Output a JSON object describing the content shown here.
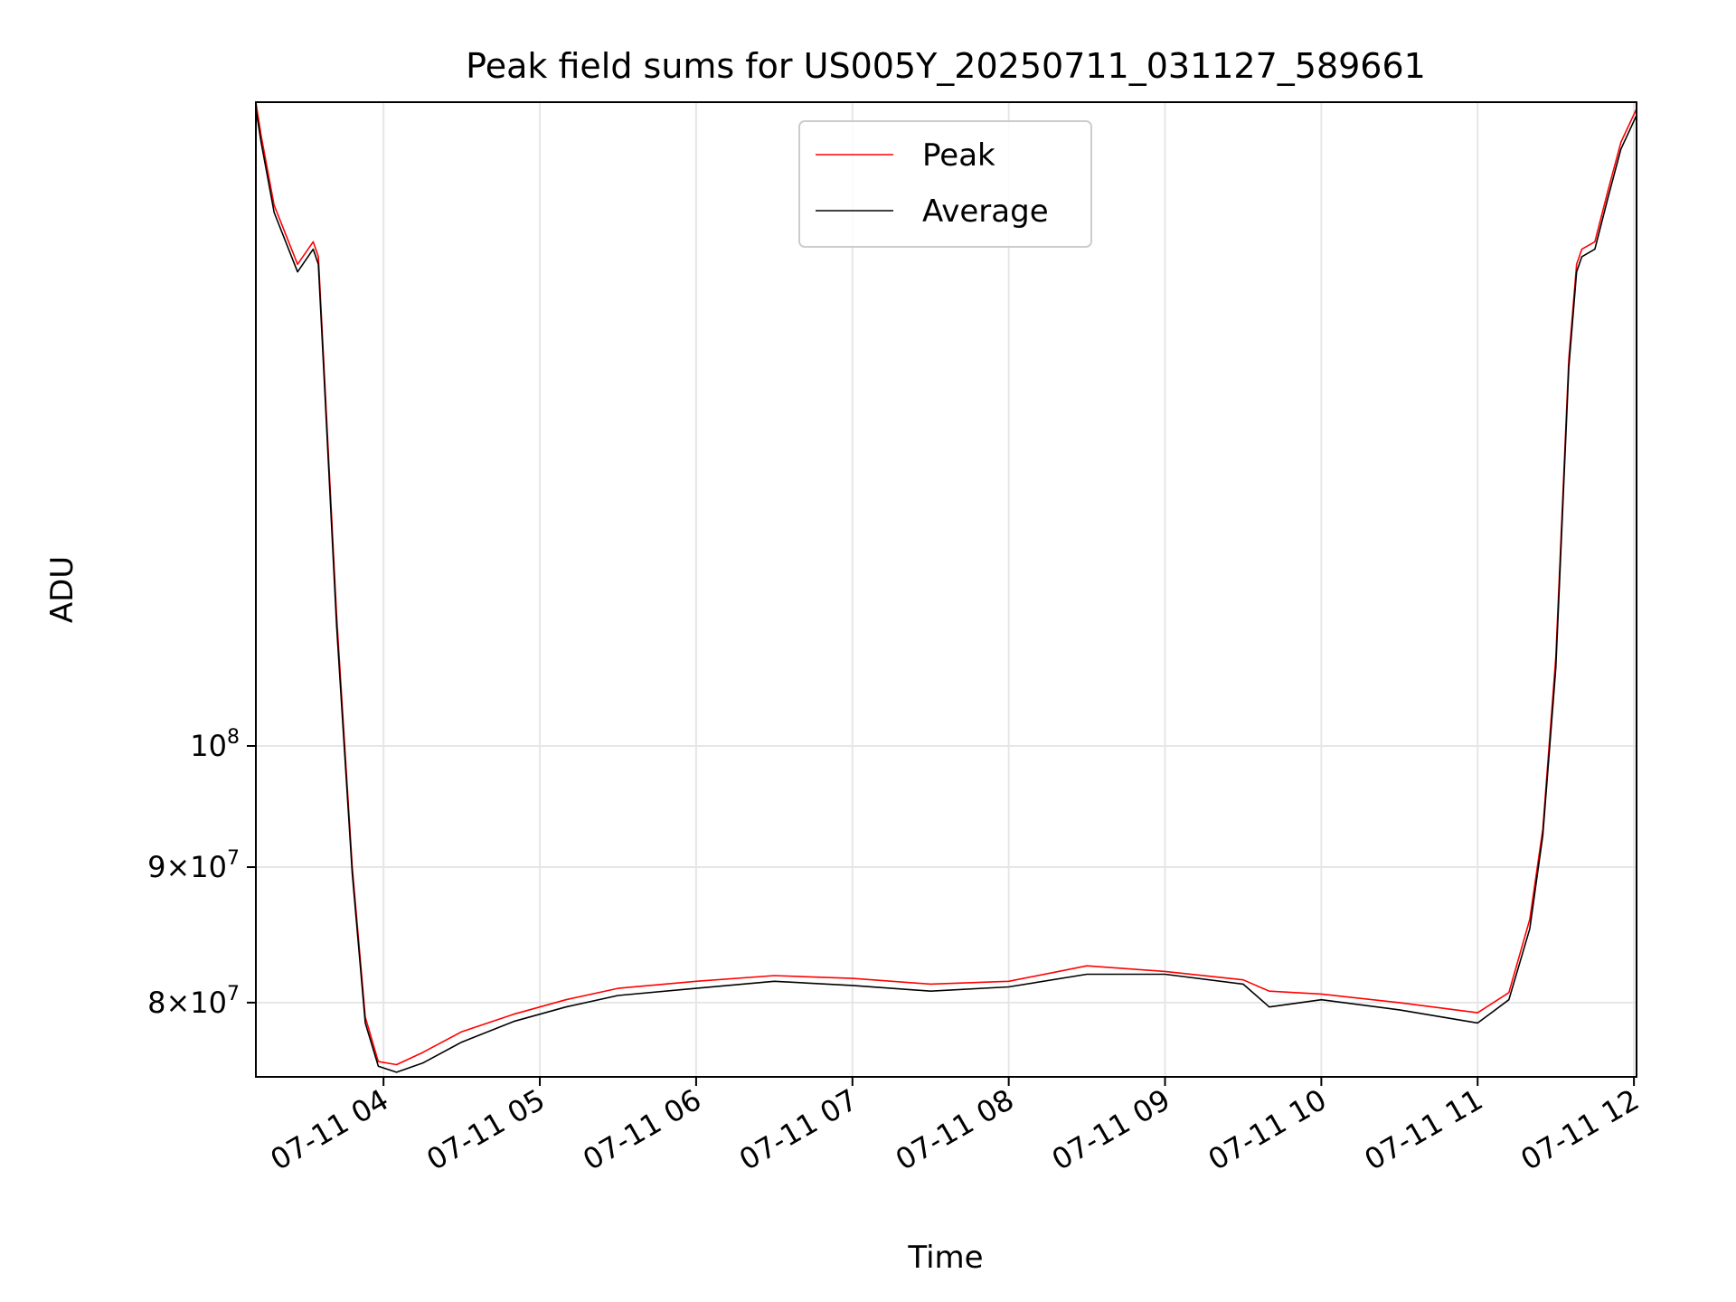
{
  "chart_data": {
    "type": "line",
    "title": "Peak field sums for US005Y_20250711_031127_589661",
    "xlabel": "Time",
    "ylabel": "ADU",
    "x_scale": "time",
    "y_scale": "log",
    "xlim": [
      "2025-07-11 03:11",
      "2025-07-11 12:01"
    ],
    "ylim": [
      75000000,
      175000000
    ],
    "x_ticks": [
      {
        "value": "2025-07-11 04:00",
        "label": "07-11 04"
      },
      {
        "value": "2025-07-11 05:00",
        "label": "07-11 05"
      },
      {
        "value": "2025-07-11 06:00",
        "label": "07-11 06"
      },
      {
        "value": "2025-07-11 07:00",
        "label": "07-11 07"
      },
      {
        "value": "2025-07-11 08:00",
        "label": "07-11 08"
      },
      {
        "value": "2025-07-11 09:00",
        "label": "07-11 09"
      },
      {
        "value": "2025-07-11 10:00",
        "label": "07-11 10"
      },
      {
        "value": "2025-07-11 11:00",
        "label": "07-11 11"
      },
      {
        "value": "2025-07-11 12:00",
        "label": "07-11 12"
      }
    ],
    "y_ticks": [
      {
        "value": 80000000,
        "label": "8×10⁷",
        "mantissa": "8",
        "exponent": "7"
      },
      {
        "value": 90000000,
        "label": "9×10⁷",
        "mantissa": "9",
        "exponent": "7"
      },
      {
        "value": 100000000,
        "label": "10⁸",
        "mantissa": "",
        "exponent": "8"
      }
    ],
    "grid": true,
    "legend": {
      "position": "upper center"
    },
    "series": [
      {
        "name": "Peak",
        "color": "#ff0000",
        "x": [
          "2025-07-11 03:11",
          "2025-07-11 03:13",
          "2025-07-11 03:18",
          "2025-07-11 03:27",
          "2025-07-11 03:33",
          "2025-07-11 03:35",
          "2025-07-11 03:37",
          "2025-07-11 03:42",
          "2025-07-11 03:48",
          "2025-07-11 03:53",
          "2025-07-11 03:58",
          "2025-07-11 04:05",
          "2025-07-11 04:15",
          "2025-07-11 04:30",
          "2025-07-11 04:50",
          "2025-07-11 05:10",
          "2025-07-11 05:30",
          "2025-07-11 06:00",
          "2025-07-11 06:30",
          "2025-07-11 07:00",
          "2025-07-11 07:30",
          "2025-07-11 08:00",
          "2025-07-11 08:30",
          "2025-07-11 09:00",
          "2025-07-11 09:30",
          "2025-07-11 09:40",
          "2025-07-11 10:00",
          "2025-07-11 10:30",
          "2025-07-11 11:00",
          "2025-07-11 11:12",
          "2025-07-11 11:20",
          "2025-07-11 11:25",
          "2025-07-11 11:30",
          "2025-07-11 11:35",
          "2025-07-11 11:38",
          "2025-07-11 11:40",
          "2025-07-11 11:45",
          "2025-07-11 11:50",
          "2025-07-11 11:55",
          "2025-07-11 12:01"
        ],
        "y": [
          175000000,
          170000000,
          160000000,
          152000000,
          155000000,
          153000000,
          140000000,
          112000000,
          90000000,
          79000000,
          76000000,
          75800000,
          76600000,
          78000000,
          79200000,
          80200000,
          81000000,
          81500000,
          81900000,
          81700000,
          81300000,
          81500000,
          82600000,
          82200000,
          81600000,
          80800000,
          80600000,
          80000000,
          79300000,
          80700000,
          86000000,
          93000000,
          108000000,
          140000000,
          152000000,
          154000000,
          155000000,
          162000000,
          169000000,
          174000000
        ]
      },
      {
        "name": "Average",
        "color": "#000000",
        "x": [
          "2025-07-11 03:11",
          "2025-07-11 03:13",
          "2025-07-11 03:18",
          "2025-07-11 03:27",
          "2025-07-11 03:33",
          "2025-07-11 03:35",
          "2025-07-11 03:37",
          "2025-07-11 03:42",
          "2025-07-11 03:48",
          "2025-07-11 03:53",
          "2025-07-11 03:58",
          "2025-07-11 04:05",
          "2025-07-11 04:15",
          "2025-07-11 04:30",
          "2025-07-11 04:50",
          "2025-07-11 05:10",
          "2025-07-11 05:30",
          "2025-07-11 06:00",
          "2025-07-11 06:30",
          "2025-07-11 07:00",
          "2025-07-11 07:30",
          "2025-07-11 08:00",
          "2025-07-11 08:30",
          "2025-07-11 09:00",
          "2025-07-11 09:30",
          "2025-07-11 09:40",
          "2025-07-11 10:00",
          "2025-07-11 10:30",
          "2025-07-11 11:00",
          "2025-07-11 11:12",
          "2025-07-11 11:20",
          "2025-07-11 11:25",
          "2025-07-11 11:30",
          "2025-07-11 11:35",
          "2025-07-11 11:38",
          "2025-07-11 11:40",
          "2025-07-11 11:45",
          "2025-07-11 11:50",
          "2025-07-11 11:55",
          "2025-07-11 12:01"
        ],
        "y": [
          174000000,
          169000000,
          159000000,
          151000000,
          154000000,
          152000000,
          139000000,
          111000000,
          89500000,
          78600000,
          75700000,
          75300000,
          75900000,
          77300000,
          78700000,
          79700000,
          80500000,
          81000000,
          81500000,
          81200000,
          80800000,
          81100000,
          82000000,
          82000000,
          81300000,
          79700000,
          80200000,
          79500000,
          78600000,
          80200000,
          85300000,
          92500000,
          107000000,
          139000000,
          151000000,
          153000000,
          154000000,
          161000000,
          168000000,
          173000000
        ]
      }
    ]
  }
}
